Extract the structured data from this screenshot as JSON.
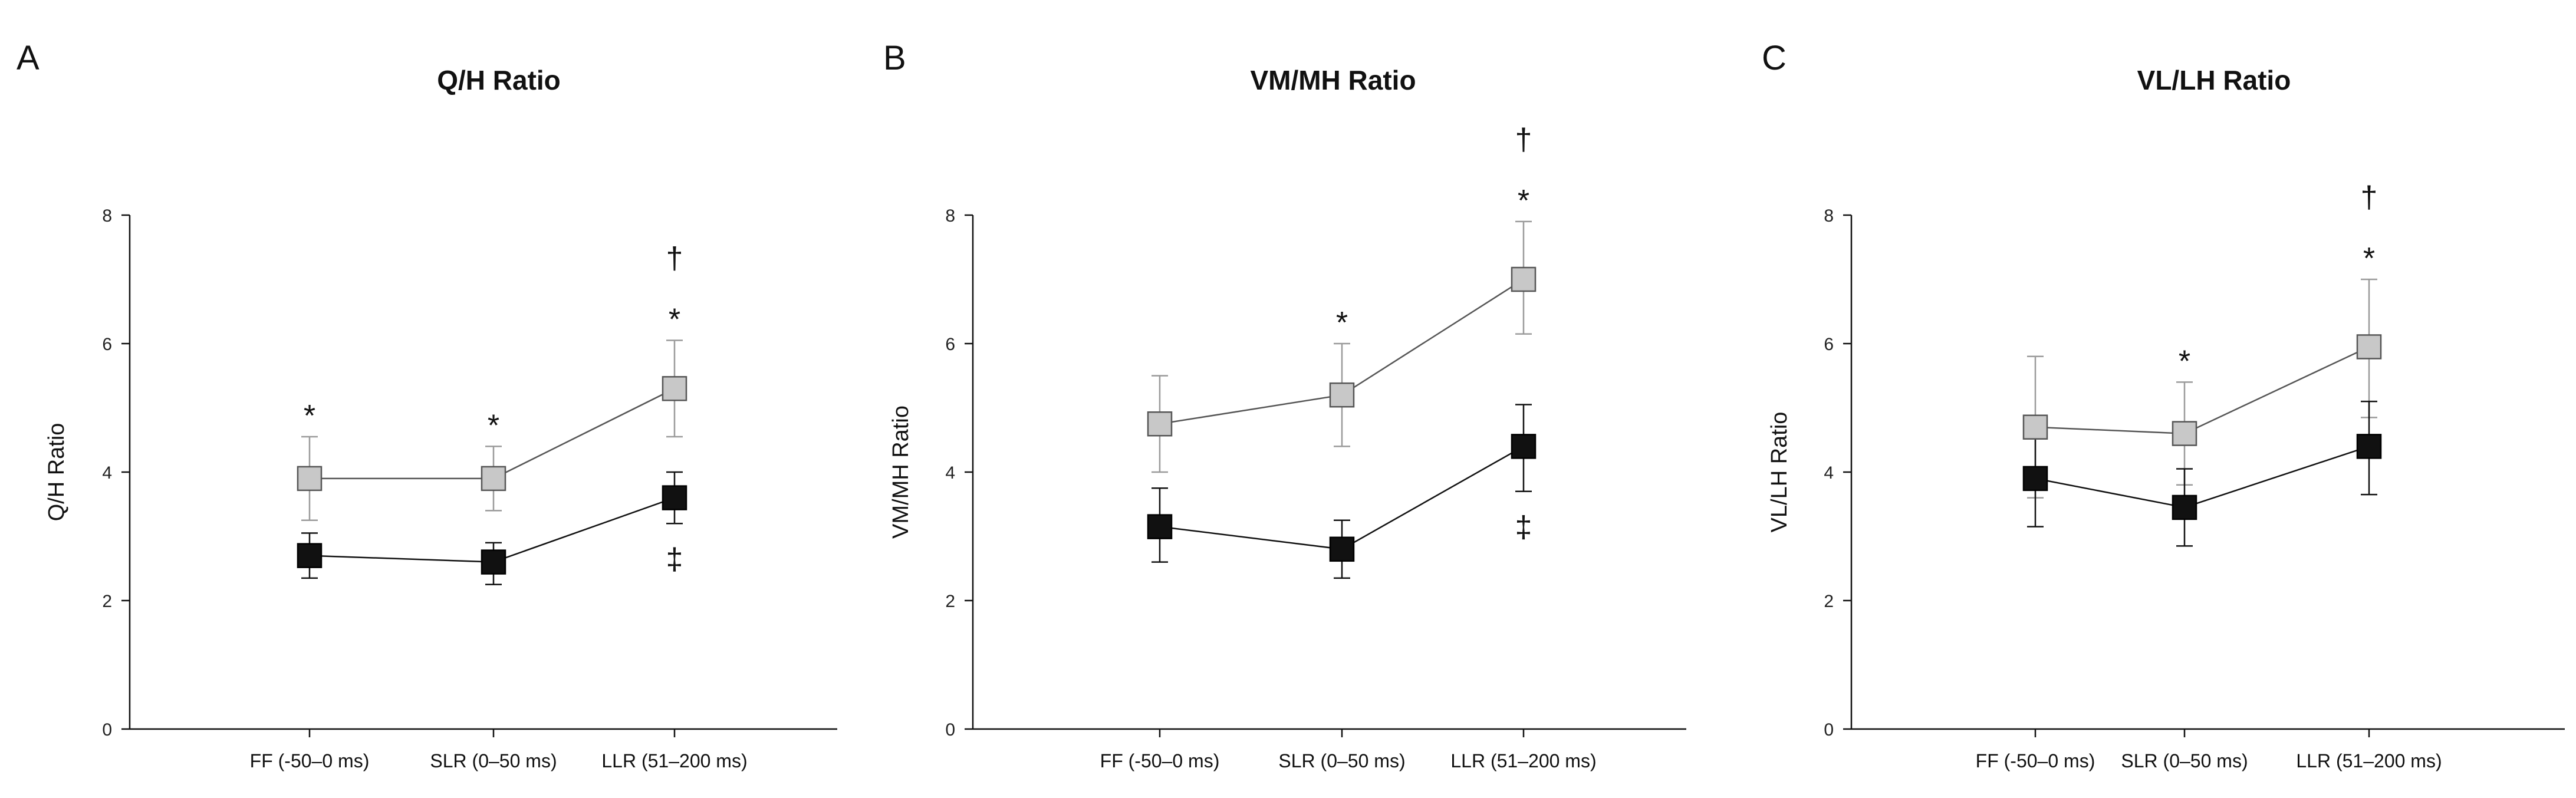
{
  "chart_data": [
    {
      "panel": "A",
      "type": "line",
      "title": "Q/H Ratio",
      "ylabel": "Q/H Ratio",
      "xlabel": "",
      "ylim": [
        0,
        8
      ],
      "yticks": [
        0,
        2,
        4,
        6,
        8
      ],
      "categories": [
        "FF (-50–0 ms)",
        "SLR (0–50 ms)",
        "LLR (51–200 ms)"
      ],
      "series": [
        {
          "name": "gray squares",
          "color": "#c8c8c8",
          "values": [
            3.9,
            3.9,
            5.3
          ],
          "err_low": [
            3.25,
            3.4,
            4.55
          ],
          "err_high": [
            4.55,
            4.4,
            6.05
          ]
        },
        {
          "name": "black squares",
          "color": "#111111",
          "values": [
            2.7,
            2.6,
            3.6
          ],
          "err_low": [
            2.35,
            2.25,
            3.2
          ],
          "err_high": [
            3.05,
            2.9,
            4.0
          ]
        }
      ],
      "annotations": [
        {
          "category_index": 0,
          "marks": [
            "*"
          ]
        },
        {
          "category_index": 1,
          "marks": [
            "*"
          ]
        },
        {
          "category_index": 2,
          "marks": [
            "†",
            "*"
          ],
          "below_marks": [
            "‡"
          ]
        }
      ]
    },
    {
      "panel": "B",
      "type": "line",
      "title": "VM/MH Ratio",
      "ylabel": "VM/MH Ratio",
      "xlabel": "",
      "ylim": [
        0,
        8
      ],
      "yticks": [
        0,
        2,
        4,
        6,
        8
      ],
      "categories": [
        "FF (-50–0 ms)",
        "SLR (0–50 ms)",
        "LLR (51–200 ms)"
      ],
      "series": [
        {
          "name": "gray squares",
          "color": "#c8c8c8",
          "values": [
            4.75,
            5.2,
            7.0
          ],
          "err_low": [
            4.0,
            4.4,
            6.15
          ],
          "err_high": [
            5.5,
            6.0,
            7.9
          ]
        },
        {
          "name": "black squares",
          "color": "#111111",
          "values": [
            3.15,
            2.8,
            4.4
          ],
          "err_low": [
            2.6,
            2.35,
            3.7
          ],
          "err_high": [
            3.75,
            3.25,
            5.05
          ]
        }
      ],
      "annotations": [
        {
          "category_index": 1,
          "marks": [
            "*"
          ]
        },
        {
          "category_index": 2,
          "marks": [
            "†",
            "*"
          ],
          "below_marks": [
            "‡"
          ]
        }
      ]
    },
    {
      "panel": "C",
      "type": "line",
      "title": "VL/LH Ratio",
      "ylabel": "VL/LH Ratio",
      "xlabel": "",
      "ylim": [
        0,
        8
      ],
      "yticks": [
        0,
        2,
        4,
        6,
        8
      ],
      "categories": [
        "FF (-50–0 ms)",
        "SLR (0–50 ms)",
        "LLR (51–200 ms)"
      ],
      "series": [
        {
          "name": "gray squares",
          "color": "#c8c8c8",
          "values": [
            4.7,
            4.6,
            5.95
          ],
          "err_low": [
            3.6,
            3.8,
            4.85
          ],
          "err_high": [
            5.8,
            5.4,
            7.0
          ]
        },
        {
          "name": "black squares",
          "color": "#111111",
          "values": [
            3.9,
            3.45,
            4.4
          ],
          "err_low": [
            3.15,
            2.85,
            3.65
          ],
          "err_high": [
            4.6,
            4.05,
            5.1
          ]
        }
      ],
      "annotations": [
        {
          "category_index": 1,
          "marks": [
            "*"
          ]
        },
        {
          "category_index": 2,
          "marks": [
            "†",
            "*"
          ]
        }
      ]
    }
  ]
}
